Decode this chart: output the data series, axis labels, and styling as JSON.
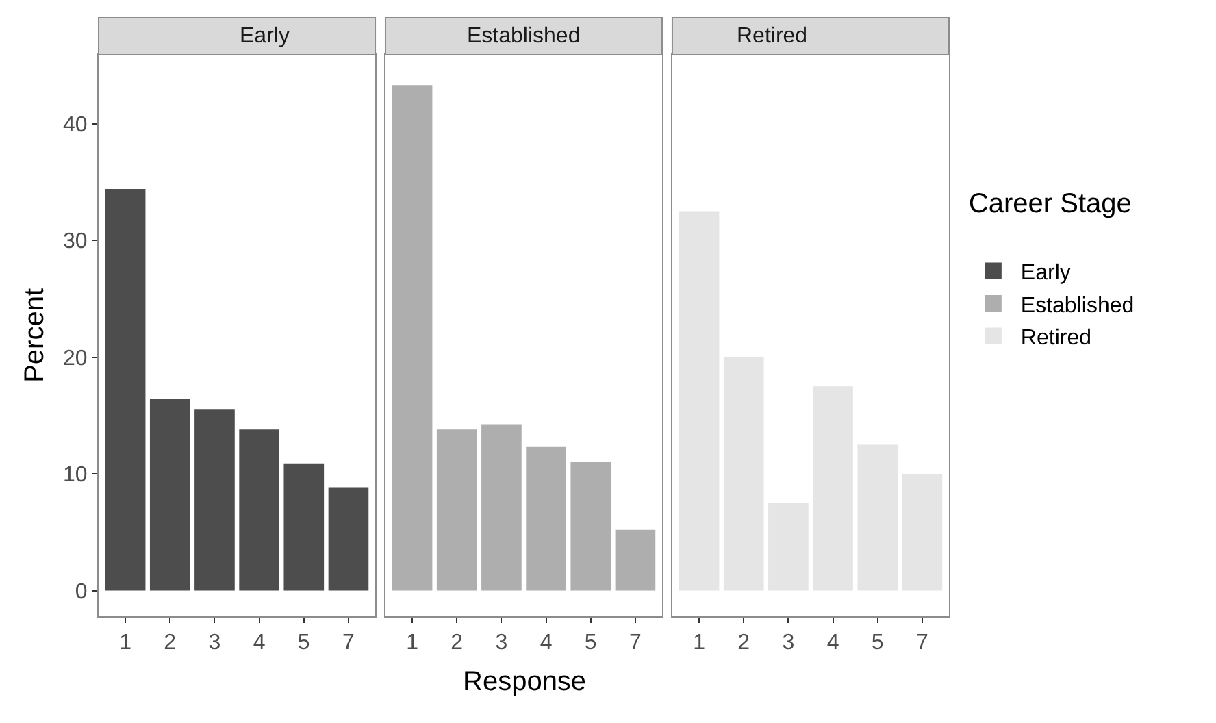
{
  "chart_data": [
    {
      "type": "bar",
      "title": "Early",
      "ylabel": "Percent",
      "legend_title": "Career Stage",
      "legend": "right",
      "categories": [
        "1",
        "2",
        "3",
        "4",
        "5",
        "7"
      ],
      "ylim": [
        -2.2,
        45.9
      ],
      "yticks": [
        0,
        10,
        20,
        30,
        40
      ],
      "series": [
        {
          "name": "Early",
          "color": "#4d4d4d",
          "values": [
            34.4,
            16.4,
            15.5,
            13.8,
            10.9,
            8.8
          ]
        }
      ]
    },
    {
      "type": "bar",
      "title": "Established",
      "xlabel": "Response",
      "legend": "right",
      "tick_labels": "x",
      "categories": [
        "1",
        "2",
        "3",
        "4",
        "5",
        "7"
      ],
      "ylim": [
        -2.2,
        45.9
      ],
      "yticks": [
        0,
        10,
        20,
        30,
        40
      ],
      "series": [
        {
          "name": "Established",
          "color": "#aeaeae",
          "values": [
            43.3,
            13.8,
            14.2,
            12.3,
            11.0,
            5.2
          ]
        }
      ]
    },
    {
      "type": "bar",
      "title": "Retired",
      "legend": "right",
      "tick_labels": "x",
      "categories": [
        "1",
        "2",
        "3",
        "4",
        "5",
        "7"
      ],
      "ylim": [
        -2.2,
        45.9
      ],
      "yticks": [
        0,
        10,
        20,
        30,
        40
      ],
      "series": [
        {
          "name": "Retired",
          "color": "#e5e5e5",
          "values": [
            32.5,
            20.0,
            7.5,
            17.5,
            12.5,
            10.0
          ]
        }
      ]
    }
  ]
}
